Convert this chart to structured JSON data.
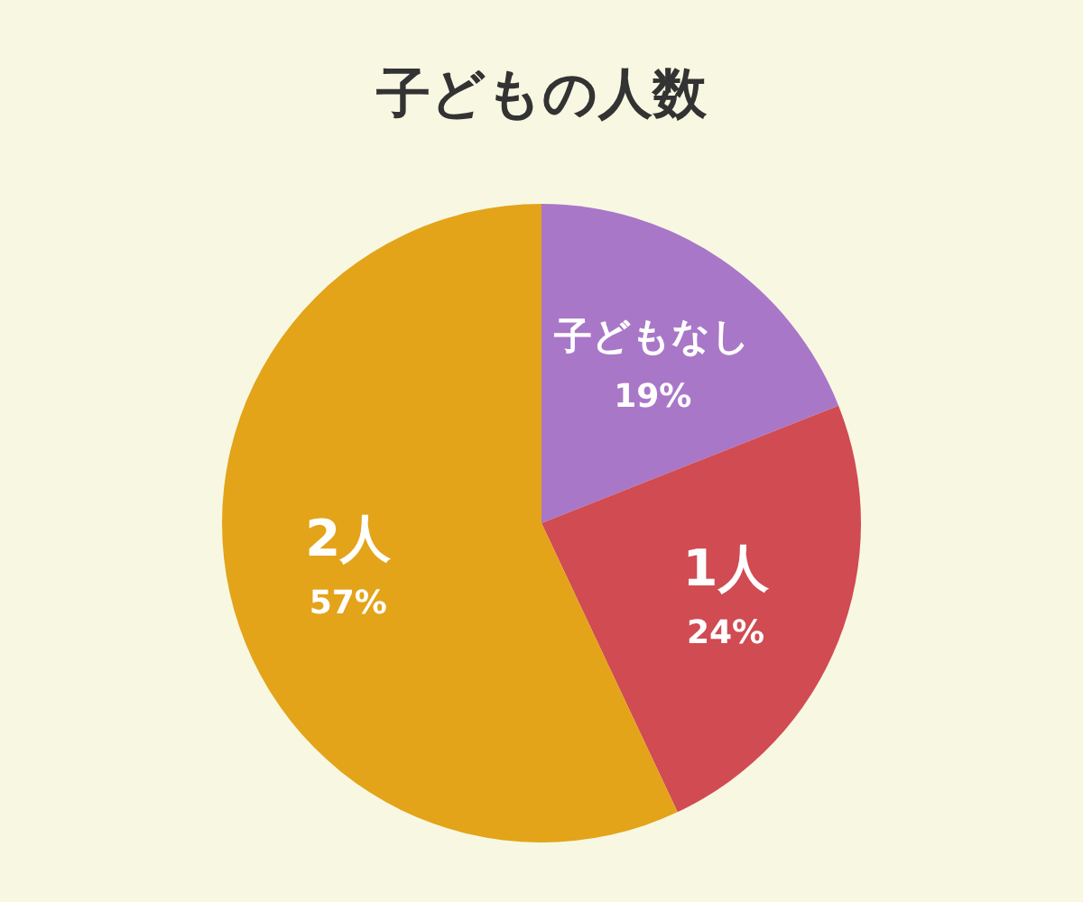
{
  "chart_data": {
    "type": "pie",
    "title": "子どもの人数",
    "categories": [
      "子どもなし",
      "1人",
      "2人"
    ],
    "values": [
      19,
      24,
      57
    ],
    "value_labels": [
      "19%",
      "24%",
      "57%"
    ],
    "colors": [
      "#a977c8",
      "#d14b52",
      "#e3a41a"
    ]
  }
}
